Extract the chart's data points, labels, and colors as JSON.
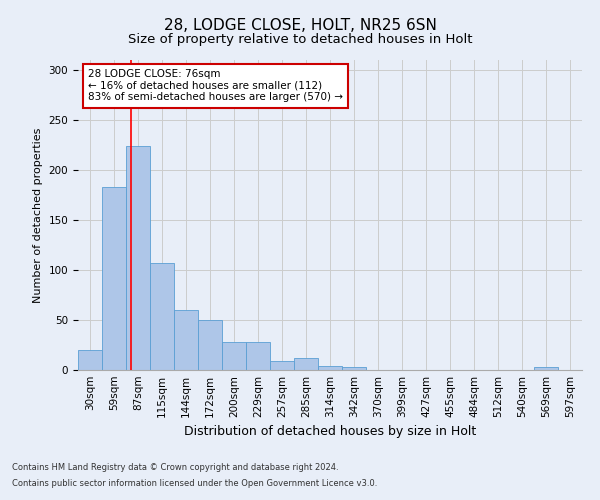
{
  "title1": "28, LODGE CLOSE, HOLT, NR25 6SN",
  "title2": "Size of property relative to detached houses in Holt",
  "xlabel": "Distribution of detached houses by size in Holt",
  "ylabel": "Number of detached properties",
  "bin_labels": [
    "30sqm",
    "59sqm",
    "87sqm",
    "115sqm",
    "144sqm",
    "172sqm",
    "200sqm",
    "229sqm",
    "257sqm",
    "285sqm",
    "314sqm",
    "342sqm",
    "370sqm",
    "399sqm",
    "427sqm",
    "455sqm",
    "484sqm",
    "512sqm",
    "540sqm",
    "569sqm",
    "597sqm"
  ],
  "bar_values": [
    20,
    183,
    224,
    107,
    60,
    50,
    28,
    28,
    9,
    12,
    4,
    3,
    0,
    0,
    0,
    0,
    0,
    0,
    0,
    3,
    0
  ],
  "bar_color": "#aec6e8",
  "bar_edge_color": "#5a9fd4",
  "bar_width": 1.0,
  "red_line_x": 1.72,
  "annotation_text": "28 LODGE CLOSE: 76sqm\n← 16% of detached houses are smaller (112)\n83% of semi-detached houses are larger (570) →",
  "annotation_box_color": "#ffffff",
  "annotation_box_edge": "#cc0000",
  "annotation_text_size": 7.5,
  "ylim": [
    0,
    310
  ],
  "yticks": [
    0,
    50,
    100,
    150,
    200,
    250,
    300
  ],
  "grid_color": "#cccccc",
  "background_color": "#e8eef8",
  "footnote1": "Contains HM Land Registry data © Crown copyright and database right 2024.",
  "footnote2": "Contains public sector information licensed under the Open Government Licence v3.0.",
  "title1_fontsize": 11,
  "title2_fontsize": 9.5,
  "xlabel_fontsize": 9,
  "ylabel_fontsize": 8,
  "tick_fontsize": 7.5
}
